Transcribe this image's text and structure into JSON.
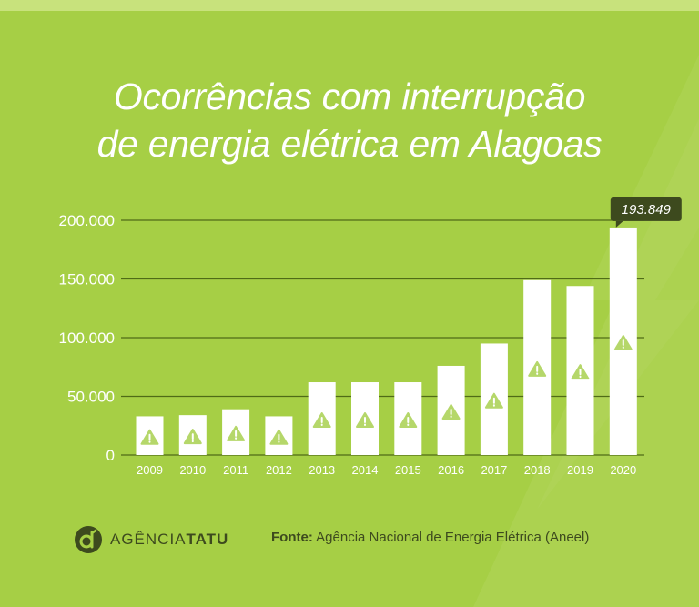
{
  "title_line1": "Ocorrências com interrupção",
  "title_line2": "de energia elétrica em Alagoas",
  "colors": {
    "background": "#a6cf45",
    "bar": "#ffffff",
    "grid": "#4f6b17",
    "axis_text": "#ffffff",
    "icon": "#b5d76a",
    "callout": "#3d4a1e"
  },
  "chart_data": {
    "type": "bar",
    "title": "Ocorrências com interrupção de energia elétrica em Alagoas",
    "categories": [
      "2009",
      "2010",
      "2011",
      "2012",
      "2013",
      "2014",
      "2015",
      "2016",
      "2017",
      "2018",
      "2019",
      "2020"
    ],
    "values": [
      33000,
      34000,
      39000,
      33000,
      62000,
      62000,
      62000,
      76000,
      95000,
      149000,
      144000,
      193849
    ],
    "ylim": [
      0,
      200000
    ],
    "yticks": [
      0,
      50000,
      100000,
      150000,
      200000
    ],
    "ytick_labels": [
      "0",
      "50.000",
      "100.000",
      "150.000",
      "200.000"
    ],
    "highlight": {
      "category": "2020",
      "label": "193.849"
    },
    "bar_icon": "warning-icon",
    "grid": true,
    "legend": "none"
  },
  "footer": {
    "brand_regular": "AGÊNCIA",
    "brand_bold": "TATU",
    "brand_icon": "tatu-logo-icon",
    "source_label": "Fonte:",
    "source_text": "Agência Nacional de Energia Elétrica (Aneel)"
  }
}
